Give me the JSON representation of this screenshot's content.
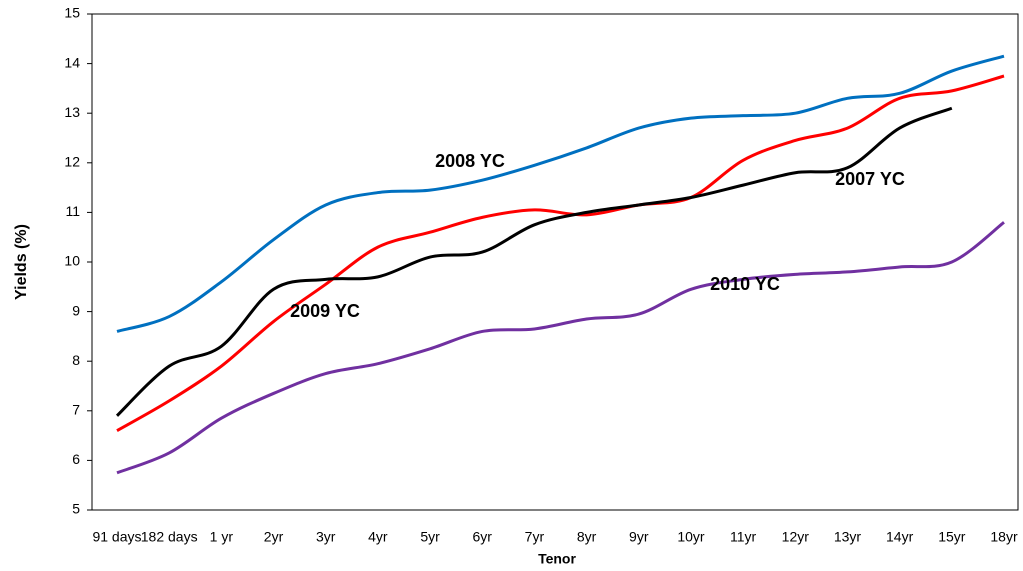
{
  "chart_data": {
    "type": "line",
    "xlabel": "Tenor",
    "ylabel": "Yields (%)",
    "categories": [
      "91 days",
      "182 days",
      "1 yr",
      "2yr",
      "3yr",
      "4yr",
      "5yr",
      "6yr",
      "7yr",
      "8yr",
      "9yr",
      "10yr",
      "11yr",
      "12yr",
      "13yr",
      "14yr",
      "15yr",
      "18yr"
    ],
    "series": [
      {
        "name": "2008 YC",
        "color": "#0070c0",
        "values": [
          8.6,
          8.9,
          9.6,
          10.45,
          11.15,
          11.4,
          11.45,
          11.65,
          11.95,
          12.3,
          12.7,
          12.9,
          12.95,
          13.0,
          13.3,
          13.4,
          13.85,
          14.15
        ]
      },
      {
        "name": "2007 YC",
        "color": "#ff0000",
        "values": [
          6.6,
          7.2,
          7.9,
          8.8,
          9.55,
          10.3,
          10.6,
          10.9,
          11.05,
          10.95,
          11.15,
          11.3,
          12.05,
          12.45,
          12.7,
          13.3,
          13.45,
          13.75
        ]
      },
      {
        "name": "2009 YC",
        "color": "#000000",
        "values": [
          6.9,
          7.9,
          8.3,
          9.45,
          9.65,
          9.7,
          10.1,
          10.2,
          10.75,
          11.0,
          11.15,
          11.3,
          11.55,
          11.8,
          11.9,
          12.7,
          13.1,
          null
        ]
      },
      {
        "name": "2010 YC",
        "color": "#7030a0",
        "values": [
          5.75,
          6.15,
          6.85,
          7.35,
          7.75,
          7.95,
          8.25,
          8.6,
          8.65,
          8.85,
          8.95,
          9.45,
          9.65,
          9.75,
          9.8,
          9.9,
          10.0,
          10.8
        ]
      }
    ],
    "ylim": [
      5,
      15
    ],
    "yticks": [
      5,
      6,
      7,
      8,
      9,
      10,
      11,
      12,
      13,
      14,
      15
    ],
    "grid": false
  }
}
